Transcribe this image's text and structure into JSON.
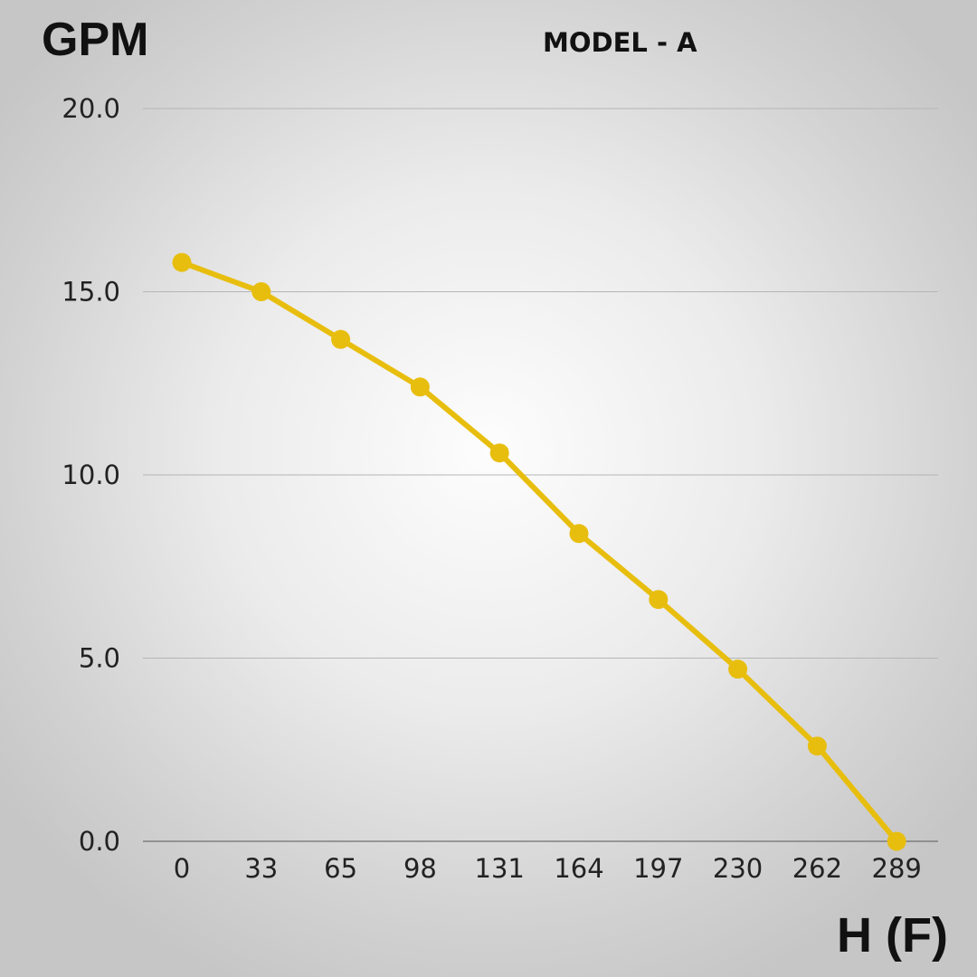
{
  "chart_data": {
    "type": "line",
    "title": "MODEL - A",
    "ylabel": "GPM",
    "xlabel": "H (F)",
    "categories": [
      "0",
      "33",
      "65",
      "98",
      "131",
      "164",
      "197",
      "230",
      "262",
      "289"
    ],
    "series": [
      {
        "values": [
          15.8,
          15.0,
          13.7,
          12.4,
          10.6,
          8.4,
          6.6,
          4.7,
          2.6,
          0.0
        ]
      }
    ],
    "ylim": [
      0,
      20
    ],
    "yticks": [
      "0.0",
      "5.0",
      "10.0",
      "15.0",
      "20.0"
    ],
    "grid": true,
    "legend": "none",
    "colors": {
      "line": "#E8BE0E",
      "grid": "#B5B5B5",
      "text": "#222222"
    }
  }
}
